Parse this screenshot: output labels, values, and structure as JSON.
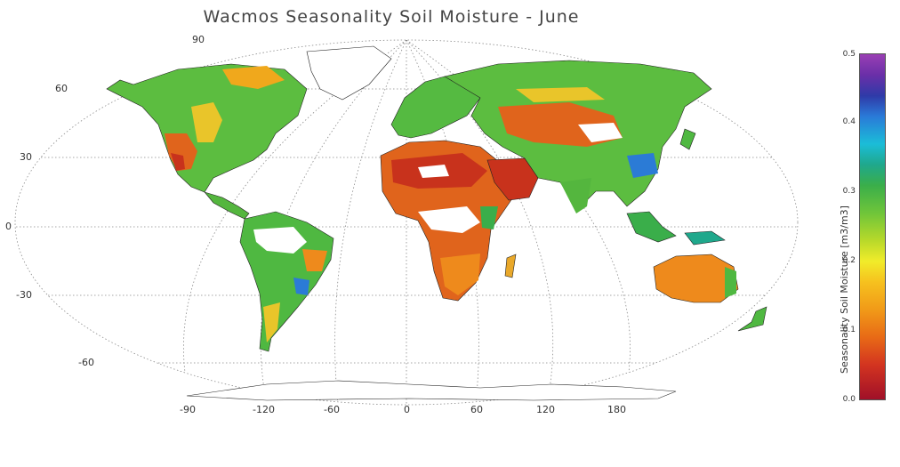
{
  "title": "Wacmos Seasonality Soil Moisture - June",
  "colorbar": {
    "label": "Seasonality Soil Moisture [m3/m3]",
    "ticks": [
      "0.0",
      "0.1",
      "0.2",
      "0.3",
      "0.4",
      "0.5"
    ],
    "range": [
      0.0,
      0.5
    ]
  },
  "latitude_labels": [
    "90",
    "60",
    "30",
    "0",
    "-30",
    "-60"
  ],
  "longitude_labels": [
    "-90",
    "-120",
    "-60",
    "0",
    "60",
    "120",
    "180"
  ],
  "colors": {
    "dry": "#c8321c",
    "semi_dry": "#ee8a1c",
    "medium": "#e9d52a",
    "moist": "#4fb841",
    "wet": "#2b7bd6",
    "no_data": "#ffffff"
  }
}
